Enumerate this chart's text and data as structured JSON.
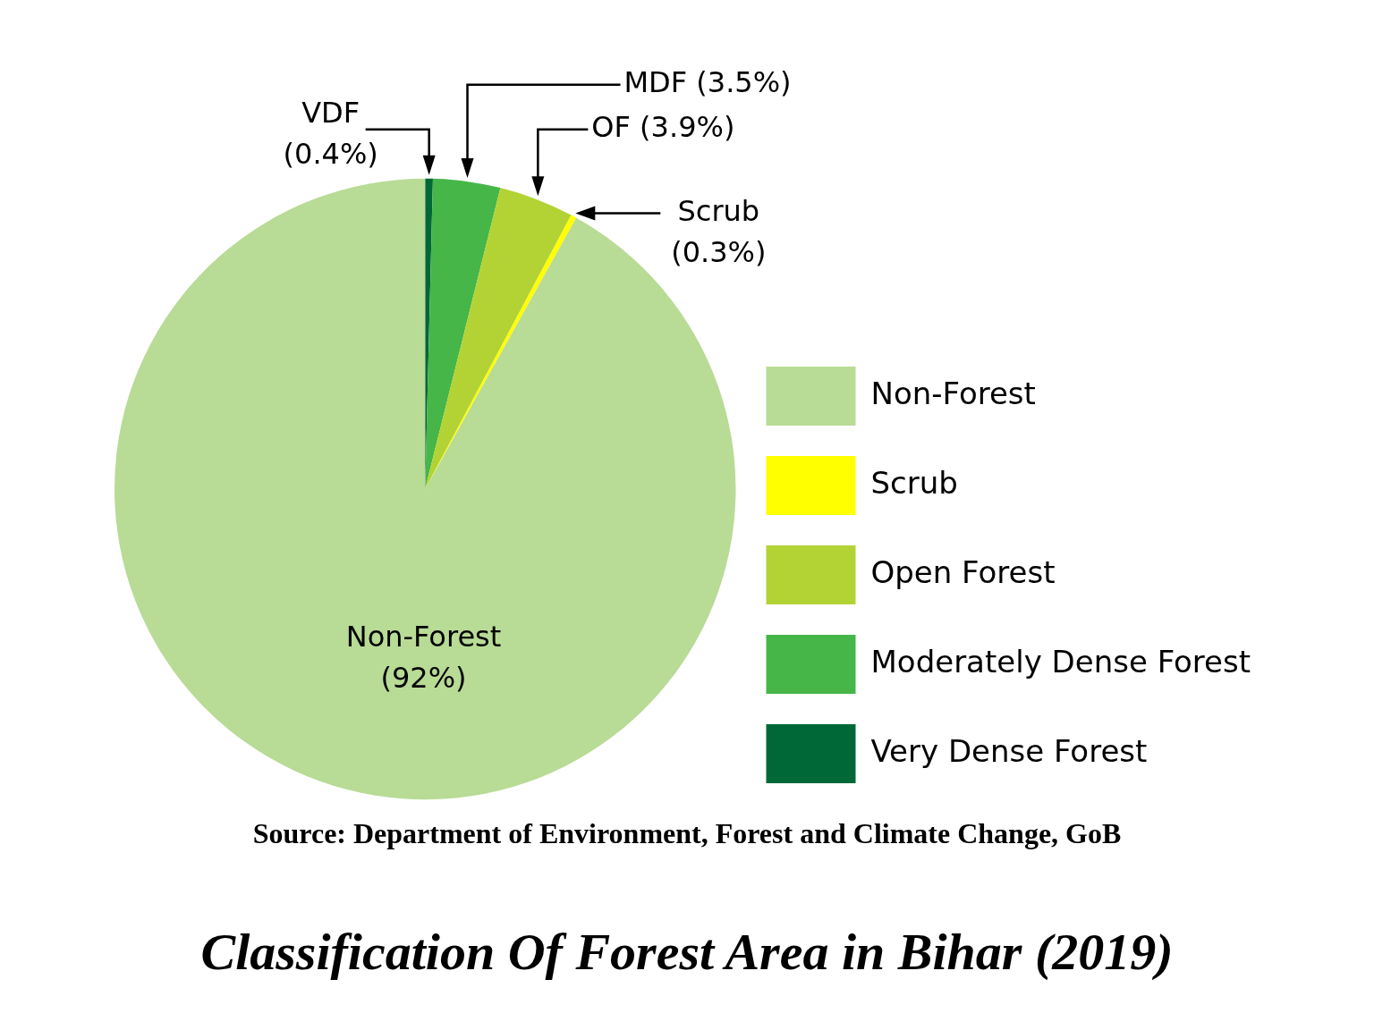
{
  "chart_data": {
    "type": "pie",
    "title": "Classification Of Forest Area in Bihar (2019)",
    "annotations": [
      "Source: Department of Environment, Forest and Climate Change, GoB"
    ],
    "categories": [
      "Very Dense Forest",
      "Moderately Dense Forest",
      "Open Forest",
      "Scrub",
      "Non-Forest"
    ],
    "values": [
      0.4,
      3.5,
      3.9,
      0.3,
      92
    ],
    "colors": [
      "#006837",
      "#46b649",
      "#b3d335",
      "#ffff00",
      "#b8db96"
    ],
    "value_labels": [
      "VDF (0.4%)",
      "MDF (3.5%)",
      "OF (3.9%)",
      "Scrub (0.3%)",
      "Non-Forest (92%)"
    ],
    "legend": "right"
  }
}
